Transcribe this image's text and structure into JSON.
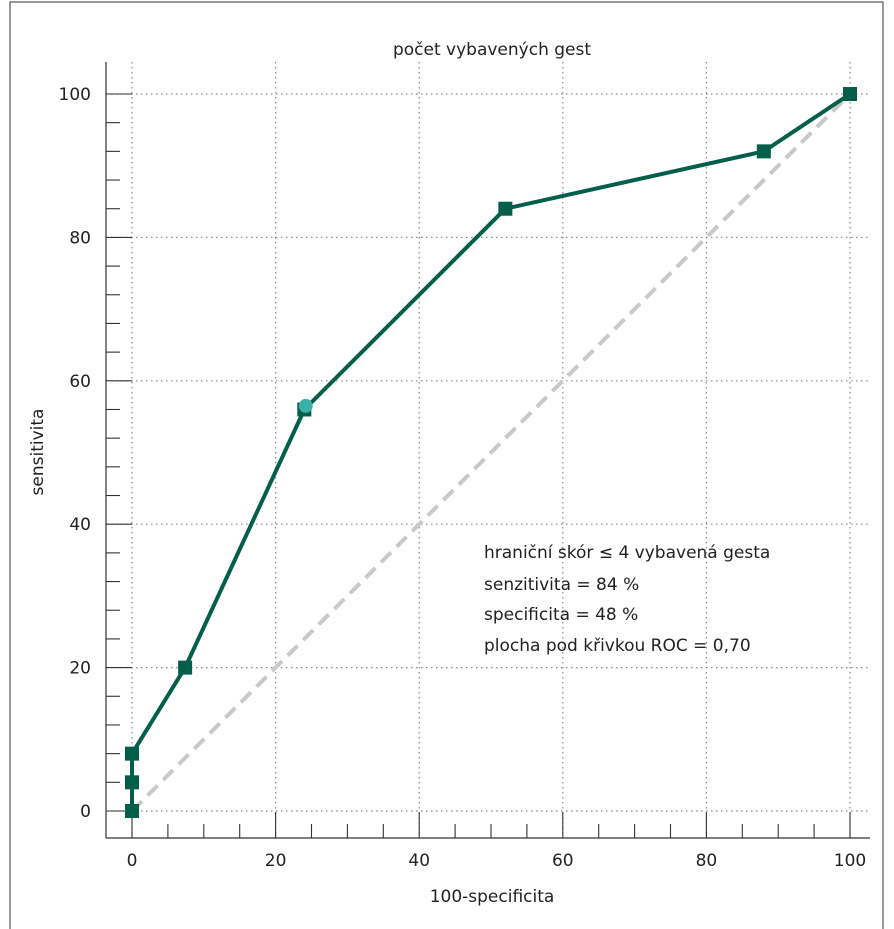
{
  "colors": {
    "frame": "#555555",
    "axis": "#333333",
    "grid": "#888888",
    "curve": "#035e4a",
    "marker": "#035e4a",
    "highlight": "#3ab0a8",
    "diagonal": "#c9c9c9"
  },
  "chart_data": {
    "type": "line",
    "title": "počet vybavených gest",
    "xlabel": "100-specificita",
    "ylabel": "sensitivita",
    "xlim": [
      0,
      100
    ],
    "ylim": [
      0,
      100
    ],
    "xticks": [
      0,
      20,
      40,
      60,
      80,
      100
    ],
    "yticks": [
      0,
      20,
      40,
      60,
      80,
      100
    ],
    "grid": true,
    "series": [
      {
        "name": "",
        "marker": "square",
        "x": [
          0,
          0,
          0,
          7.4,
          24,
          52,
          88,
          100
        ],
        "y": [
          0,
          4,
          8,
          20,
          56,
          84,
          92,
          100
        ]
      }
    ],
    "reference_line": {
      "x": [
        0,
        100
      ],
      "y": [
        0,
        100
      ],
      "style": "dashed"
    },
    "highlight_point": {
      "x": 24.2,
      "y": 56.5
    },
    "annotation": [
      "hraniční skór ≤ 4 vybavená gesta",
      "senzitivita = 84 %",
      "specificita = 48 %",
      "plocha pod křivkou ROC = 0,70"
    ]
  }
}
